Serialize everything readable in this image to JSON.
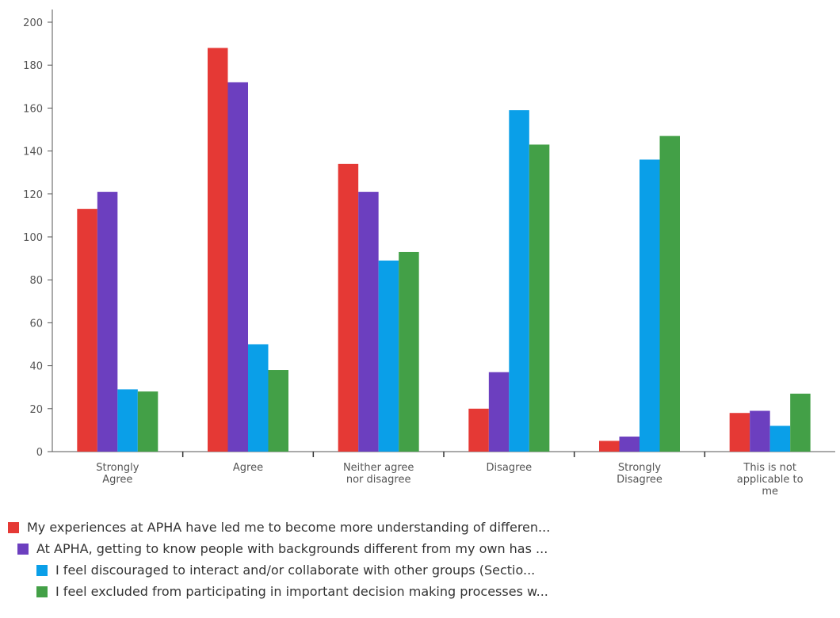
{
  "chart_data": {
    "type": "bar",
    "categories": [
      [
        "Strongly",
        "Agree"
      ],
      [
        "Agree"
      ],
      [
        "Neither agree",
        "nor disagree"
      ],
      [
        "Disagree"
      ],
      [
        "Strongly",
        "Disagree"
      ],
      [
        "This is not",
        "applicable to",
        "me"
      ]
    ],
    "series": [
      {
        "name": "My experiences at APHA have led me to become more understanding of differen...",
        "color": "#e53935",
        "values": [
          113,
          188,
          134,
          20,
          5,
          18
        ]
      },
      {
        "name": "At APHA, getting to know people with backgrounds different from my own has ...",
        "color": "#6c3fbf",
        "values": [
          121,
          172,
          121,
          37,
          7,
          19
        ]
      },
      {
        "name": "I feel discouraged to interact and/or collaborate with other groups (Sectio...",
        "color": "#0a9fe8",
        "values": [
          29,
          50,
          89,
          159,
          136,
          12
        ]
      },
      {
        "name": "I feel excluded from participating in important decision making processes w...",
        "color": "#43a047",
        "values": [
          28,
          38,
          93,
          143,
          147,
          27
        ]
      }
    ],
    "ylim": [
      0,
      200
    ],
    "yticks": [
      0,
      20,
      40,
      60,
      80,
      100,
      120,
      140,
      160,
      180,
      200
    ],
    "xlabel": "",
    "ylabel": "",
    "grid": false,
    "legend_position": "bottom-left"
  }
}
